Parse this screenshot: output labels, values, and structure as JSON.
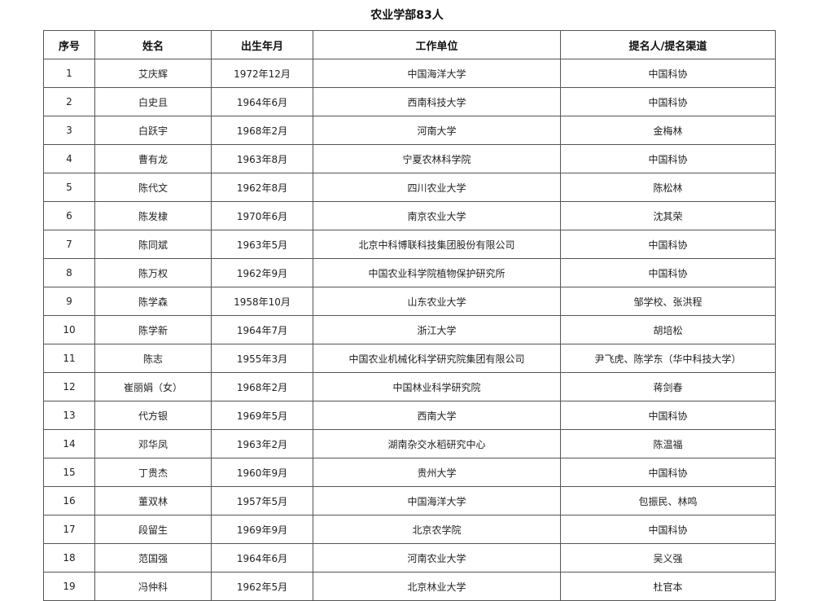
{
  "title": "农业学部83人",
  "columns": [
    "序号",
    "姓名",
    "出生年月",
    "工作单位",
    "提名人/提名渠道"
  ],
  "rows": [
    [
      "1",
      "艾庆辉",
      "1972年12月",
      "中国海洋大学",
      "中国科协"
    ],
    [
      "2",
      "白史且",
      "1964年6月",
      "西南科技大学",
      "中国科协"
    ],
    [
      "3",
      "白跃宇",
      "1968年2月",
      "河南大学",
      "金梅林"
    ],
    [
      "4",
      "曹有龙",
      "1963年8月",
      "宁夏农林科学院",
      "中国科协"
    ],
    [
      "5",
      "陈代文",
      "1962年8月",
      "四川农业大学",
      "陈松林"
    ],
    [
      "6",
      "陈发棣",
      "1970年6月",
      "南京农业大学",
      "沈其荣"
    ],
    [
      "7",
      "陈同斌",
      "1963年5月",
      "北京中科博联科技集团股份有限公司",
      "中国科协"
    ],
    [
      "8",
      "陈万权",
      "1962年9月",
      "中国农业科学院植物保护研究所",
      "中国科协"
    ],
    [
      "9",
      "陈学森",
      "1958年10月",
      "山东农业大学",
      "邹学校、张洪程"
    ],
    [
      "10",
      "陈学新",
      "1964年7月",
      "浙江大学",
      "胡培松"
    ],
    [
      "11",
      "陈志",
      "1955年3月",
      "中国农业机械化科学研究院集团有限公司",
      "尹飞虎、陈学东（华中科技大学）"
    ],
    [
      "12",
      "崔丽娟（女）",
      "1968年2月",
      "中国林业科学研究院",
      "蒋剑春"
    ],
    [
      "13",
      "代方银",
      "1969年5月",
      "西南大学",
      "中国科协"
    ],
    [
      "14",
      "邓华凤",
      "1963年2月",
      "湖南杂交水稻研究中心",
      "陈温福"
    ],
    [
      "15",
      "丁贵杰",
      "1960年9月",
      "贵州大学",
      "中国科协"
    ],
    [
      "16",
      "董双林",
      "1957年5月",
      "中国海洋大学",
      "包振民、林鸣"
    ],
    [
      "17",
      "段留生",
      "1969年9月",
      "北京农学院",
      "中国科协"
    ],
    [
      "18",
      "范国强",
      "1964年6月",
      "河南农业大学",
      "吴义强"
    ],
    [
      "19",
      "冯仲科",
      "1962年5月",
      "北京林业大学",
      "杜官本"
    ]
  ]
}
